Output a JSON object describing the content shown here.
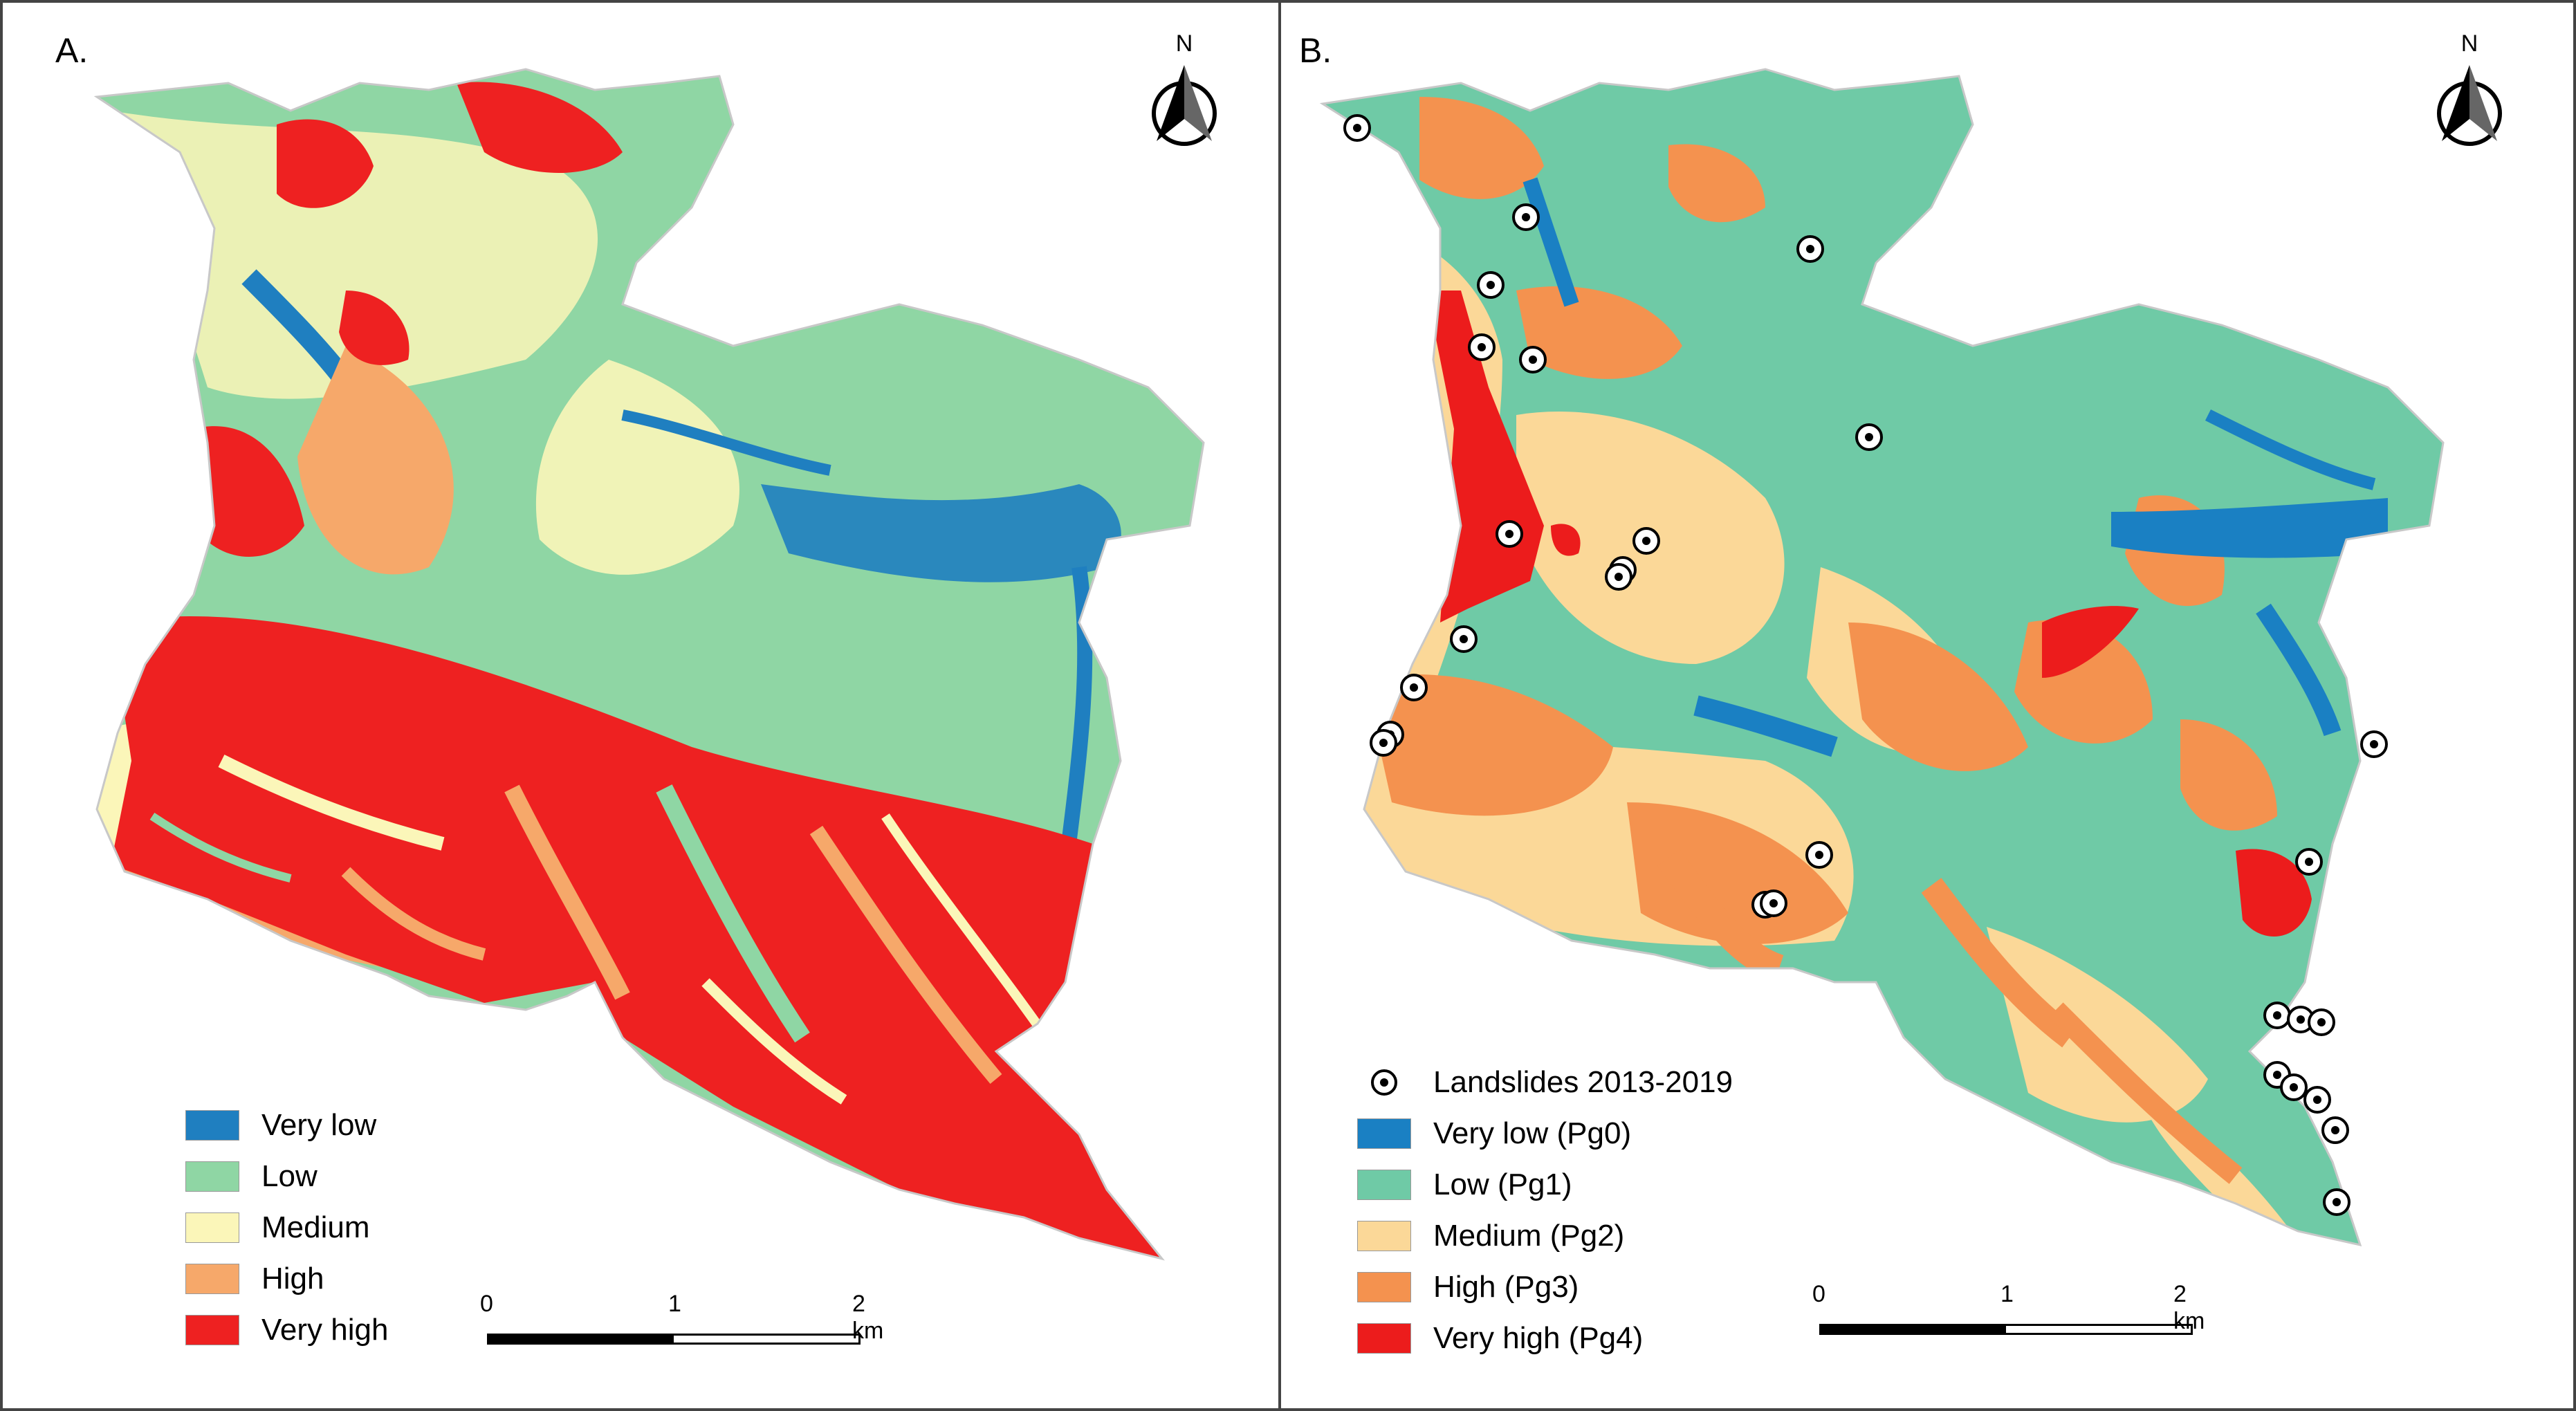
{
  "panels": [
    {
      "label": "A.",
      "north_label": "N",
      "legend": [
        {
          "label": "Very low",
          "color": "#1f7fc0"
        },
        {
          "label": "Low",
          "color": "#8fd6a4"
        },
        {
          "label": "Medium",
          "color": "#fbf6b9"
        },
        {
          "label": "High",
          "color": "#f6a86a"
        },
        {
          "label": "Very high",
          "color": "#ee2121"
        }
      ],
      "scale": {
        "ticks": [
          "0",
          "1",
          "2 km"
        ]
      }
    },
    {
      "label": "B.",
      "north_label": "N",
      "legend_points": {
        "label": "Landslides 2013-2019",
        "icon": "landslide-point-icon"
      },
      "legend": [
        {
          "label": "Very low (Pg0)",
          "color": "#1a80c3"
        },
        {
          "label": "Low (Pg1)",
          "color": "#6fcaa6"
        },
        {
          "label": "Medium (Pg2)",
          "color": "#fbd898"
        },
        {
          "label": "High (Pg3)",
          "color": "#f4924f"
        },
        {
          "label": "Very high (Pg4)",
          "color": "#ec1c1c"
        }
      ],
      "scale": {
        "ticks": [
          "0",
          "1",
          "2 km"
        ]
      }
    }
  ]
}
